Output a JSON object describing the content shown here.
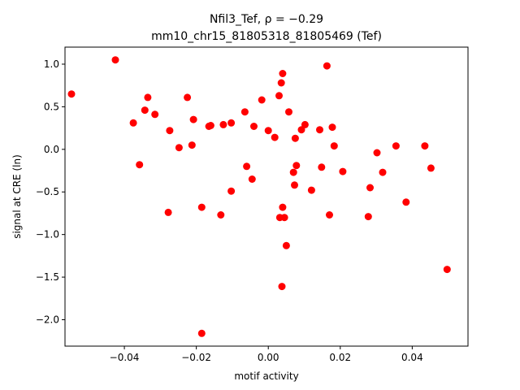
{
  "chart_data": {
    "type": "scatter",
    "title_line1": "Nfil3_Tef, ρ = −0.29",
    "title_line2": "mm10_chr15_81805318_81805469 (Tef)",
    "xlabel": "motif activity",
    "ylabel": "signal at CRE (ln)",
    "xlim": [
      -0.0565,
      0.0555
    ],
    "ylim": [
      -2.31,
      1.2
    ],
    "xticks": [
      -0.04,
      -0.02,
      0.0,
      0.02,
      0.04
    ],
    "xtick_labels": [
      "−0.04",
      "−0.02",
      "0.00",
      "0.02",
      "0.04"
    ],
    "yticks": [
      1.0,
      0.5,
      0.0,
      -0.5,
      -1.0,
      -1.5,
      -2.0
    ],
    "ytick_labels": [
      "1.0",
      "0.5",
      "0.0",
      "−0.5",
      "−1.0",
      "−1.5",
      "−2.0"
    ],
    "marker_color": "#ff0000",
    "series": [
      {
        "points": [
          [
            -0.0547,
            0.65
          ],
          [
            -0.0425,
            1.05
          ],
          [
            -0.0375,
            0.31
          ],
          [
            -0.0358,
            -0.18
          ],
          [
            -0.0343,
            0.46
          ],
          [
            -0.0335,
            0.61
          ],
          [
            -0.0315,
            0.41
          ],
          [
            -0.0278,
            -0.74
          ],
          [
            -0.0274,
            0.22
          ],
          [
            -0.0248,
            0.02
          ],
          [
            -0.0225,
            0.61
          ],
          [
            -0.0212,
            0.05
          ],
          [
            -0.0208,
            0.35
          ],
          [
            -0.0185,
            -0.68
          ],
          [
            -0.0185,
            -2.16
          ],
          [
            -0.0165,
            0.27
          ],
          [
            -0.016,
            0.28
          ],
          [
            -0.0132,
            -0.77
          ],
          [
            -0.0125,
            0.29
          ],
          [
            -0.0103,
            0.31
          ],
          [
            -0.0103,
            -0.49
          ],
          [
            -0.0065,
            0.44
          ],
          [
            -0.006,
            -0.2
          ],
          [
            -0.0045,
            -0.35
          ],
          [
            -0.004,
            0.27
          ],
          [
            -0.0018,
            0.58
          ],
          [
            0.0,
            0.22
          ],
          [
            0.0018,
            0.14
          ],
          [
            0.003,
            0.63
          ],
          [
            0.0032,
            -0.8
          ],
          [
            0.0036,
            0.78
          ],
          [
            0.0038,
            -1.61
          ],
          [
            0.004,
            0.89
          ],
          [
            0.004,
            -0.68
          ],
          [
            0.0045,
            -0.8
          ],
          [
            0.005,
            -1.13
          ],
          [
            0.0057,
            0.44
          ],
          [
            0.007,
            -0.27
          ],
          [
            0.0073,
            -0.42
          ],
          [
            0.0075,
            0.13
          ],
          [
            0.0078,
            -0.19
          ],
          [
            0.0092,
            0.23
          ],
          [
            0.0102,
            0.29
          ],
          [
            0.012,
            -0.48
          ],
          [
            0.0143,
            0.23
          ],
          [
            0.0148,
            -0.21
          ],
          [
            0.0163,
            0.98
          ],
          [
            0.017,
            -0.77
          ],
          [
            0.0178,
            0.26
          ],
          [
            0.0183,
            0.04
          ],
          [
            0.0207,
            -0.26
          ],
          [
            0.0278,
            -0.79
          ],
          [
            0.0283,
            -0.45
          ],
          [
            0.0302,
            -0.04
          ],
          [
            0.0318,
            -0.27
          ],
          [
            0.0355,
            0.04
          ],
          [
            0.0383,
            -0.62
          ],
          [
            0.0435,
            0.04
          ],
          [
            0.0452,
            -0.22
          ],
          [
            0.0497,
            -1.41
          ]
        ]
      }
    ]
  }
}
